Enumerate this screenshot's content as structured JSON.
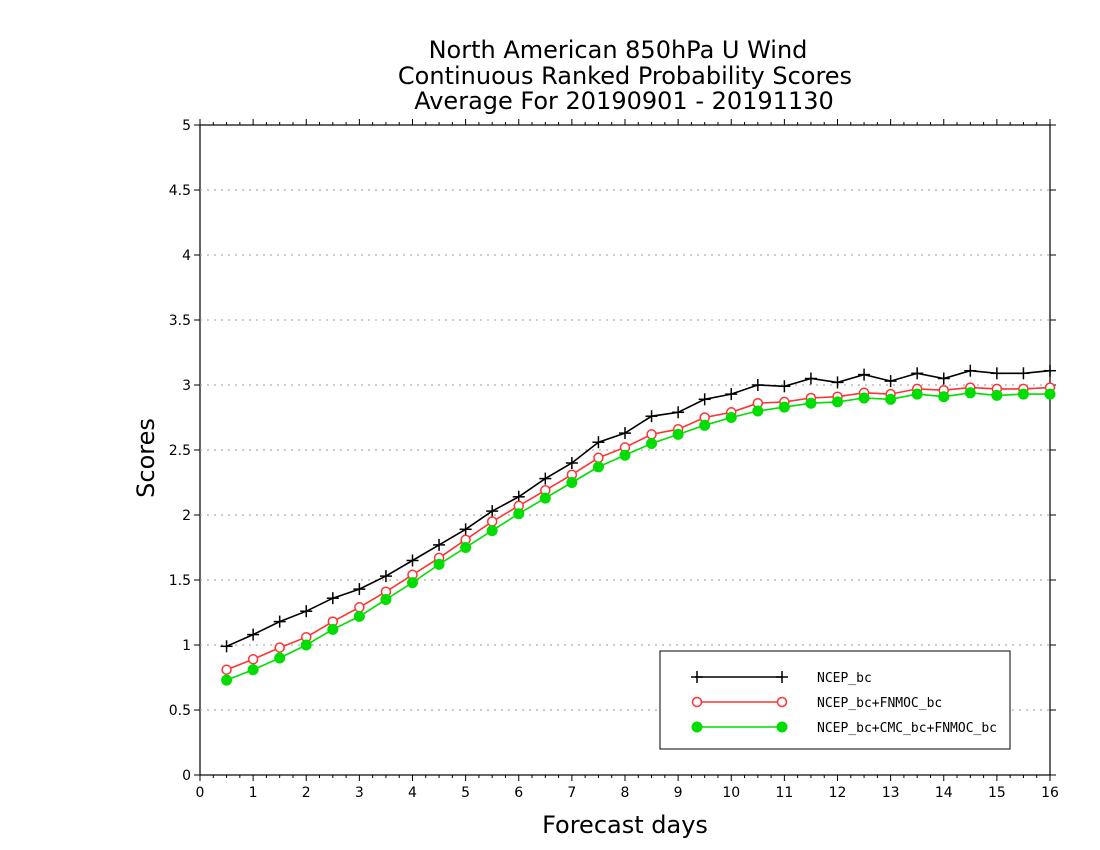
{
  "chart_data": {
    "type": "line",
    "title": [
      "North American 850hPa U Wind",
      "Continuous Ranked Probability Scores",
      "Average For 20190901 - 20191130"
    ],
    "xlabel": "Forecast days",
    "ylabel": "Scores",
    "xlim": [
      0,
      16
    ],
    "ylim": [
      0,
      5
    ],
    "x_ticks": [
      "0",
      "1",
      "2",
      "3",
      "4",
      "5",
      "6",
      "7",
      "8",
      "9",
      "10",
      "11",
      "12",
      "13",
      "14",
      "15",
      "16"
    ],
    "y_ticks": [
      "0",
      "0.5",
      "1",
      "1.5",
      "2",
      "2.5",
      "3",
      "3.5",
      "4",
      "4.5",
      "5"
    ],
    "grid": true,
    "legend_position": "bottom-right",
    "x": [
      0.5,
      1,
      1.5,
      2,
      2.5,
      3,
      3.5,
      4,
      4.5,
      5,
      5.5,
      6,
      6.5,
      7,
      7.5,
      8,
      8.5,
      9,
      9.5,
      10,
      10.5,
      11,
      11.5,
      12,
      12.5,
      13,
      13.5,
      14,
      14.5,
      15,
      15.5,
      16
    ],
    "series": [
      {
        "name": "NCEP_bc",
        "color": "#000000",
        "marker": "plus",
        "values": [
          0.99,
          1.08,
          1.18,
          1.26,
          1.36,
          1.43,
          1.53,
          1.65,
          1.77,
          1.89,
          2.03,
          2.14,
          2.28,
          2.4,
          2.56,
          2.63,
          2.76,
          2.79,
          2.89,
          2.93,
          3.0,
          2.99,
          3.05,
          3.02,
          3.08,
          3.03,
          3.09,
          3.05,
          3.11,
          3.09,
          3.09,
          3.11
        ]
      },
      {
        "name": "NCEP_bc+FNMOC_bc",
        "color": "#ff3333",
        "marker": "open-circle",
        "values": [
          0.81,
          0.89,
          0.98,
          1.06,
          1.18,
          1.29,
          1.41,
          1.54,
          1.67,
          1.81,
          1.95,
          2.07,
          2.19,
          2.31,
          2.44,
          2.52,
          2.62,
          2.66,
          2.75,
          2.79,
          2.86,
          2.87,
          2.9,
          2.91,
          2.94,
          2.93,
          2.97,
          2.96,
          2.98,
          2.97,
          2.97,
          2.98
        ]
      },
      {
        "name": "NCEP_bc+CMC_bc+FNMOC_bc",
        "color": "#00dd00",
        "marker": "filled-circle",
        "values": [
          0.73,
          0.81,
          0.9,
          1.0,
          1.12,
          1.22,
          1.35,
          1.48,
          1.62,
          1.75,
          1.88,
          2.01,
          2.13,
          2.25,
          2.37,
          2.46,
          2.55,
          2.62,
          2.69,
          2.75,
          2.8,
          2.83,
          2.86,
          2.87,
          2.9,
          2.89,
          2.93,
          2.91,
          2.94,
          2.92,
          2.93,
          2.93
        ]
      }
    ]
  }
}
